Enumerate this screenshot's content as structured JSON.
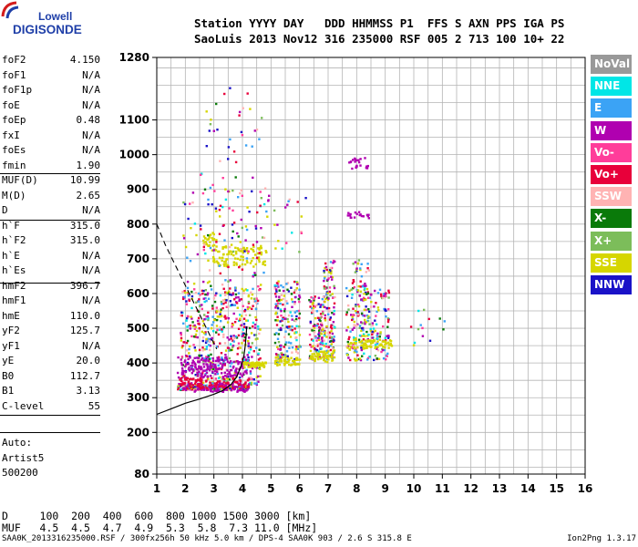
{
  "logo": {
    "line1": "Lowell",
    "line2": "DIGISONDE"
  },
  "header": {
    "line1": "Station YYYY DAY   DDD HHMMSS P1  FFS S AXN PPS IGA PS",
    "line2": "SaoLuis 2013 Nov12 316 235000 RSF 005 2 713 100 10+ 22"
  },
  "params": [
    {
      "k": "foF2",
      "v": "4.150"
    },
    {
      "k": "foF1",
      "v": "N/A"
    },
    {
      "k": "foF1p",
      "v": "N/A"
    },
    {
      "k": "foE",
      "v": "N/A"
    },
    {
      "k": "foEp",
      "v": "0.48"
    },
    {
      "k": "fxI",
      "v": "N/A"
    },
    {
      "k": "foEs",
      "v": "N/A"
    },
    {
      "k": "fmin",
      "v": "1.90"
    },
    {
      "k": "MUF(D)",
      "v": "10.99"
    },
    {
      "k": "M(D)",
      "v": "2.65"
    },
    {
      "k": "D",
      "v": "N/A"
    },
    {
      "k": "h`F",
      "v": "315.0"
    },
    {
      "k": "h`F2",
      "v": "315.0"
    },
    {
      "k": "h`E",
      "v": "N/A"
    },
    {
      "k": "h`Es",
      "v": "N/A"
    },
    {
      "k": "hmF2",
      "v": "396.7"
    },
    {
      "k": "hmF1",
      "v": "N/A"
    },
    {
      "k": "hmE",
      "v": "110.0"
    },
    {
      "k": "yF2",
      "v": "125.7"
    },
    {
      "k": "yF1",
      "v": "N/A"
    },
    {
      "k": "yE",
      "v": "20.0"
    },
    {
      "k": "B0",
      "v": "112.7"
    },
    {
      "k": "B1",
      "v": "3.13"
    },
    {
      "k": "C-level",
      "v": "55"
    }
  ],
  "auto": [
    "Auto:",
    "Artist5",
    "500200"
  ],
  "legend": [
    {
      "label": "NoVal",
      "color": "#999999"
    },
    {
      "label": "NNE",
      "color": "#00e6e6"
    },
    {
      "label": "E",
      "color": "#3ba3f5"
    },
    {
      "label": "W",
      "color": "#b000b0"
    },
    {
      "label": "Vo-",
      "color": "#ff3d9a"
    },
    {
      "label": "Vo+",
      "color": "#e8003a"
    },
    {
      "label": "SSW",
      "color": "#ffb3b3"
    },
    {
      "label": "X-",
      "color": "#0a7a0a"
    },
    {
      "label": "X+",
      "color": "#7cbd5a"
    },
    {
      "label": "SSE",
      "color": "#d6d600"
    },
    {
      "label": "NNW",
      "color": "#1a12c8"
    }
  ],
  "muf_table": {
    "row1": "D     100  200  400  600  800 1000 1500 3000 [km]",
    "row2": "MUF   4.5  4.5  4.7  4.9  5.3  5.8  7.3 11.0 [MHz]"
  },
  "footer": {
    "left": "SAA0K_2013316235000.RSF / 300fx256h 50 kHz 5.0 km / DPS-4 SAA0K 903 / 2.6 S 315.8 E",
    "right": "Ion2Png 1.3.17"
  },
  "chart_data": {
    "type": "scatter",
    "xlim": [
      1,
      16
    ],
    "ylim": [
      80,
      1280
    ],
    "x_ticks": [
      1,
      2,
      3,
      4,
      5,
      6,
      7,
      8,
      9,
      10,
      11,
      12,
      13,
      14,
      15,
      16
    ],
    "y_ticks": [
      80,
      200,
      300,
      400,
      500,
      600,
      700,
      800,
      900,
      1000,
      1100,
      1280
    ],
    "grid": true,
    "x_minor": 0.5,
    "y_minor_step": 50,
    "profile": [
      [
        1.0,
        252
      ],
      [
        1.5,
        268
      ],
      [
        2.0,
        284
      ],
      [
        2.5,
        296
      ],
      [
        3.0,
        310
      ],
      [
        3.3,
        320
      ],
      [
        3.6,
        338
      ],
      [
        3.8,
        360
      ],
      [
        3.95,
        390
      ],
      [
        4.05,
        420
      ],
      [
        4.1,
        450
      ],
      [
        4.13,
        480
      ],
      [
        4.15,
        505
      ]
    ],
    "dashed": [
      [
        1.0,
        800
      ],
      [
        1.3,
        740
      ],
      [
        1.6,
        690
      ],
      [
        1.9,
        640
      ],
      [
        2.2,
        590
      ],
      [
        2.5,
        540
      ],
      [
        2.8,
        490
      ],
      [
        3.1,
        440
      ]
    ],
    "traces": [
      {
        "x0": 1.7,
        "x1": 4.2,
        "y0": 325,
        "y1": 340,
        "dir": "mix",
        "n": 260
      },
      {
        "x0": 1.8,
        "x1": 4.6,
        "y0": 340,
        "y1": 620,
        "dir": "mix",
        "n": 520
      },
      {
        "x0": 1.7,
        "x1": 4.2,
        "y0": 360,
        "y1": 420,
        "dir": "W",
        "n": 170
      },
      {
        "x0": 1.7,
        "x1": 4.2,
        "y0": 320,
        "y1": 345,
        "dir": "W",
        "n": 90
      },
      {
        "x0": 1.7,
        "x1": 4.2,
        "y0": 330,
        "y1": 360,
        "dir": "Vo+",
        "n": 90
      },
      {
        "x0": 4.0,
        "x1": 4.8,
        "y0": 390,
        "y1": 405,
        "dir": "SSE",
        "n": 60
      },
      {
        "x0": 2.9,
        "x1": 4.8,
        "y0": 680,
        "y1": 740,
        "dir": "SSE",
        "n": 110
      },
      {
        "x0": 2.6,
        "x1": 3.0,
        "y0": 740,
        "y1": 780,
        "dir": "SSE",
        "n": 25
      },
      {
        "x0": 1.9,
        "x1": 4.9,
        "y0": 620,
        "y1": 900,
        "dir": "mix",
        "n": 120
      },
      {
        "x0": 2.5,
        "x1": 4.8,
        "y0": 900,
        "y1": 1200,
        "dir": "mix",
        "n": 40
      },
      {
        "x0": 5.1,
        "x1": 6.0,
        "y0": 400,
        "y1": 640,
        "dir": "mix",
        "n": 180
      },
      {
        "x0": 5.1,
        "x1": 6.0,
        "y0": 395,
        "y1": 420,
        "dir": "SSE",
        "n": 45
      },
      {
        "x0": 5.0,
        "x1": 6.2,
        "y0": 720,
        "y1": 880,
        "dir": "mix",
        "n": 18
      },
      {
        "x0": 6.3,
        "x1": 7.2,
        "y0": 410,
        "y1": 600,
        "dir": "mix",
        "n": 200
      },
      {
        "x0": 6.3,
        "x1": 7.2,
        "y0": 405,
        "y1": 440,
        "dir": "SSE",
        "n": 50
      },
      {
        "x0": 6.8,
        "x1": 7.2,
        "y0": 600,
        "y1": 700,
        "dir": "mix",
        "n": 40
      },
      {
        "x0": 7.6,
        "x1": 9.1,
        "y0": 410,
        "y1": 620,
        "dir": "mix",
        "n": 240
      },
      {
        "x0": 7.6,
        "x1": 9.2,
        "y0": 445,
        "y1": 470,
        "dir": "SSE",
        "n": 70
      },
      {
        "x0": 7.8,
        "x1": 8.4,
        "y0": 620,
        "y1": 700,
        "dir": "mix",
        "n": 30
      },
      {
        "x0": 7.6,
        "x1": 8.4,
        "y0": 820,
        "y1": 840,
        "dir": "W",
        "n": 20
      },
      {
        "x0": 7.7,
        "x1": 8.4,
        "y0": 960,
        "y1": 995,
        "dir": "W",
        "n": 22
      },
      {
        "x0": 9.8,
        "x1": 11.2,
        "y0": 450,
        "y1": 560,
        "dir": "mix",
        "n": 14
      }
    ]
  }
}
